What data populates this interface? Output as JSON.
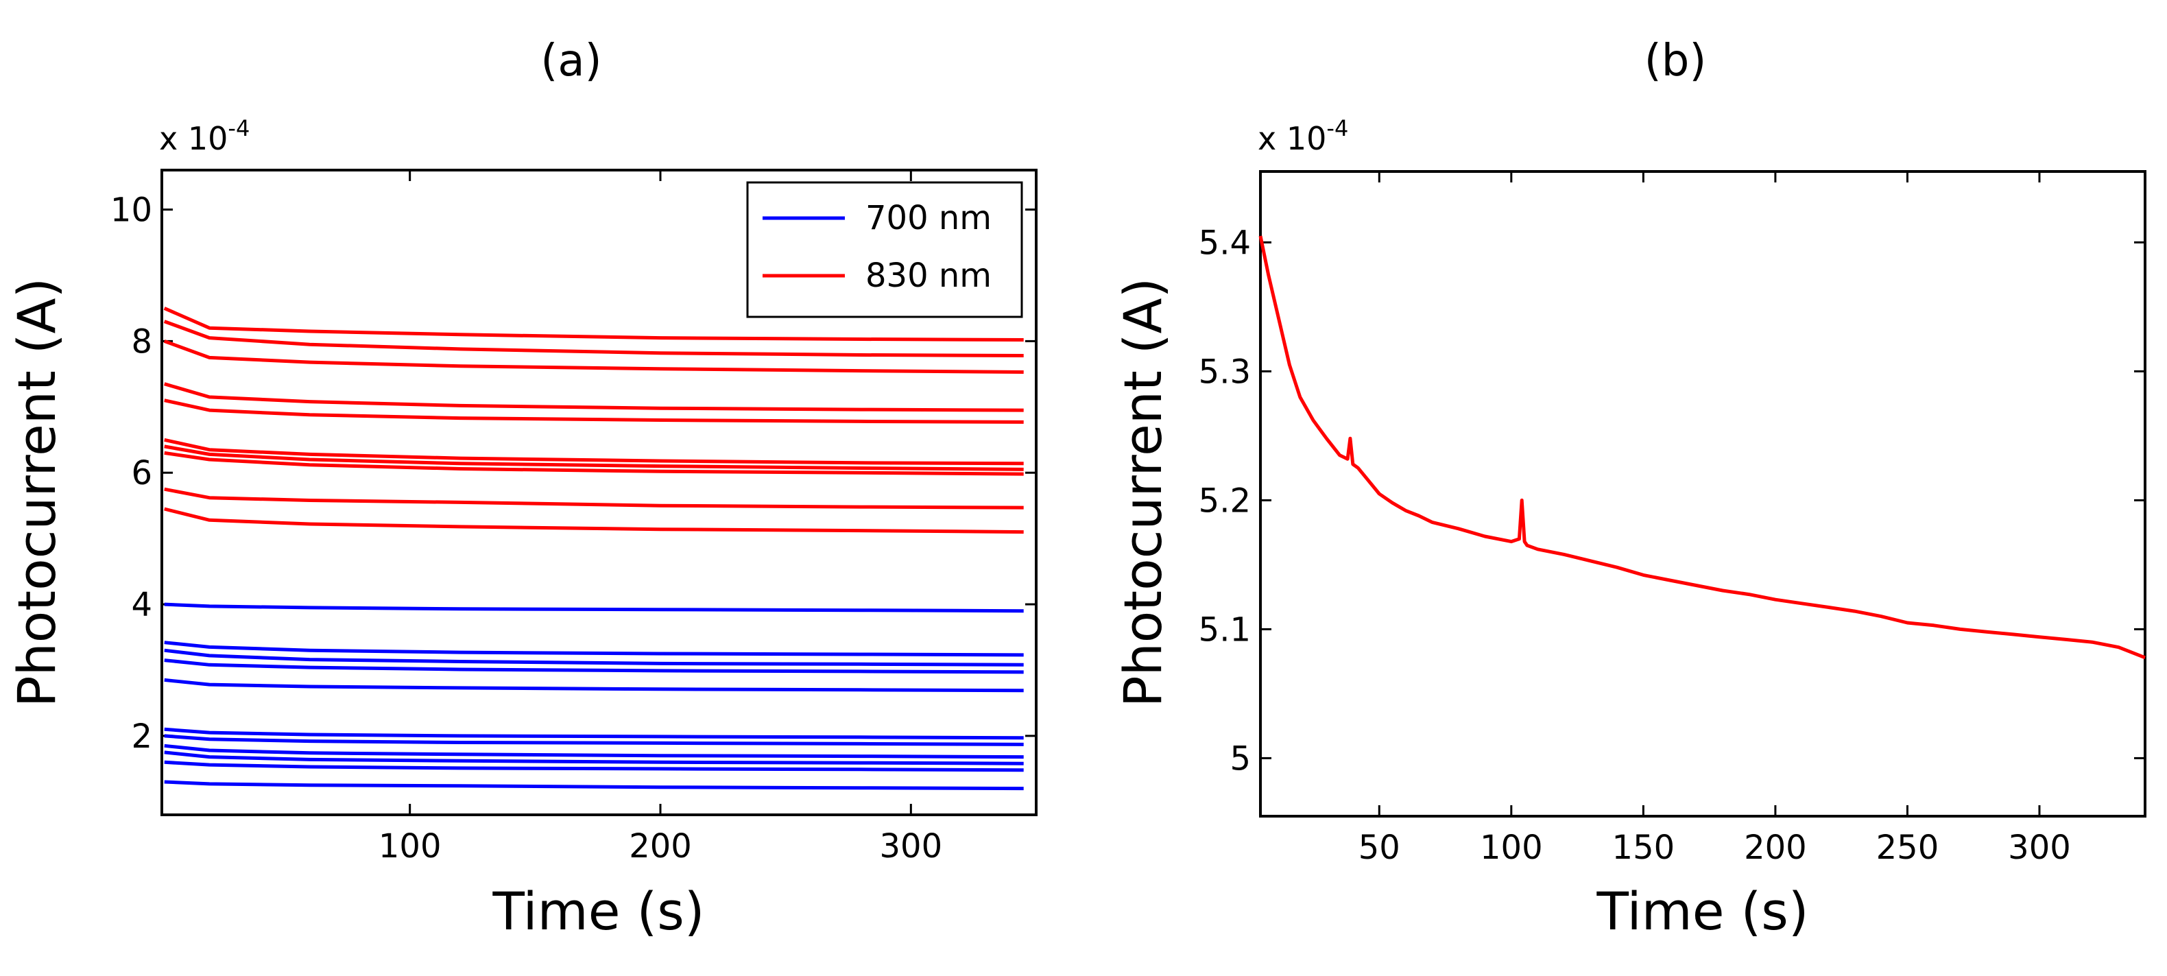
{
  "figure": {
    "description_labels": [
      "(a)",
      "(b)"
    ]
  },
  "chart_data": [
    {
      "type": "line",
      "panel_label": "(a)",
      "title": "(a)",
      "xlabel": "Time (s)",
      "ylabel": "Photocurrent (A)",
      "y_scale_base": "x 10",
      "y_scale_exponent": "-4",
      "xlim": [
        1,
        350
      ],
      "ylim": [
        0.8,
        10.6
      ],
      "xticks": [
        100,
        200,
        300
      ],
      "yticks": [
        2,
        4,
        6,
        8,
        10
      ],
      "legend": {
        "position": "top-right",
        "entries": [
          {
            "label": "700 nm",
            "color": "#0000ff"
          },
          {
            "label": "830 nm",
            "color": "#ff0000"
          }
        ]
      },
      "series": [
        {
          "name": "830 nm",
          "color": "#ff0000",
          "x": [
            2,
            20,
            60,
            120,
            200,
            280,
            345
          ],
          "values": [
            8.5,
            8.2,
            8.15,
            8.1,
            8.05,
            8.03,
            8.02
          ]
        },
        {
          "name": "830 nm",
          "color": "#ff0000",
          "x": [
            2,
            20,
            60,
            120,
            200,
            280,
            345
          ],
          "values": [
            8.3,
            8.05,
            7.95,
            7.88,
            7.82,
            7.79,
            7.78
          ]
        },
        {
          "name": "830 nm",
          "color": "#ff0000",
          "x": [
            2,
            20,
            60,
            120,
            200,
            280,
            345
          ],
          "values": [
            8.0,
            7.75,
            7.68,
            7.62,
            7.58,
            7.55,
            7.53
          ]
        },
        {
          "name": "830 nm",
          "color": "#ff0000",
          "x": [
            2,
            20,
            60,
            120,
            200,
            280,
            345
          ],
          "values": [
            7.35,
            7.15,
            7.08,
            7.02,
            6.98,
            6.96,
            6.95
          ]
        },
        {
          "name": "830 nm",
          "color": "#ff0000",
          "x": [
            2,
            20,
            60,
            120,
            200,
            280,
            345
          ],
          "values": [
            7.1,
            6.95,
            6.88,
            6.83,
            6.8,
            6.78,
            6.77
          ]
        },
        {
          "name": "830 nm",
          "color": "#ff0000",
          "x": [
            2,
            20,
            60,
            120,
            200,
            280,
            345
          ],
          "values": [
            6.5,
            6.35,
            6.28,
            6.22,
            6.18,
            6.15,
            6.14
          ]
        },
        {
          "name": "830 nm",
          "color": "#ff0000",
          "x": [
            2,
            20,
            60,
            120,
            200,
            280,
            345
          ],
          "values": [
            6.4,
            6.28,
            6.2,
            6.14,
            6.1,
            6.07,
            6.05
          ]
        },
        {
          "name": "830 nm",
          "color": "#ff0000",
          "x": [
            2,
            20,
            60,
            120,
            200,
            280,
            345
          ],
          "values": [
            6.3,
            6.2,
            6.12,
            6.06,
            6.02,
            6.0,
            5.98
          ]
        },
        {
          "name": "830 nm",
          "color": "#ff0000",
          "x": [
            2,
            20,
            60,
            120,
            200,
            280,
            345
          ],
          "values": [
            5.75,
            5.62,
            5.58,
            5.55,
            5.5,
            5.48,
            5.47
          ]
        },
        {
          "name": "830 nm",
          "color": "#ff0000",
          "x": [
            2,
            20,
            60,
            120,
            200,
            280,
            345
          ],
          "values": [
            5.45,
            5.28,
            5.22,
            5.18,
            5.14,
            5.12,
            5.1
          ]
        },
        {
          "name": "700 nm",
          "color": "#0000ff",
          "x": [
            2,
            20,
            60,
            120,
            200,
            280,
            345
          ],
          "values": [
            4.0,
            3.97,
            3.95,
            3.93,
            3.92,
            3.91,
            3.9
          ]
        },
        {
          "name": "700 nm",
          "color": "#0000ff",
          "x": [
            2,
            20,
            60,
            120,
            200,
            280,
            345
          ],
          "values": [
            3.42,
            3.35,
            3.3,
            3.27,
            3.25,
            3.24,
            3.23
          ]
        },
        {
          "name": "700 nm",
          "color": "#0000ff",
          "x": [
            2,
            20,
            60,
            120,
            200,
            280,
            345
          ],
          "values": [
            3.3,
            3.22,
            3.16,
            3.13,
            3.1,
            3.09,
            3.08
          ]
        },
        {
          "name": "700 nm",
          "color": "#0000ff",
          "x": [
            2,
            20,
            60,
            120,
            200,
            280,
            345
          ],
          "values": [
            3.15,
            3.08,
            3.04,
            3.01,
            2.99,
            2.98,
            2.97
          ]
        },
        {
          "name": "700 nm",
          "color": "#0000ff",
          "x": [
            2,
            20,
            60,
            120,
            200,
            280,
            345
          ],
          "values": [
            2.85,
            2.78,
            2.75,
            2.73,
            2.71,
            2.7,
            2.69
          ]
        },
        {
          "name": "700 nm",
          "color": "#0000ff",
          "x": [
            2,
            20,
            60,
            120,
            200,
            280,
            345
          ],
          "values": [
            2.1,
            2.05,
            2.02,
            2.0,
            1.99,
            1.98,
            1.97
          ]
        },
        {
          "name": "700 nm",
          "color": "#0000ff",
          "x": [
            2,
            20,
            60,
            120,
            200,
            280,
            345
          ],
          "values": [
            2.0,
            1.95,
            1.92,
            1.9,
            1.89,
            1.88,
            1.87
          ]
        },
        {
          "name": "700 nm",
          "color": "#0000ff",
          "x": [
            2,
            20,
            60,
            120,
            200,
            280,
            345
          ],
          "values": [
            1.85,
            1.78,
            1.74,
            1.72,
            1.7,
            1.69,
            1.68
          ]
        },
        {
          "name": "700 nm",
          "color": "#0000ff",
          "x": [
            2,
            20,
            60,
            120,
            200,
            280,
            345
          ],
          "values": [
            1.75,
            1.68,
            1.64,
            1.62,
            1.6,
            1.59,
            1.58
          ]
        },
        {
          "name": "700 nm",
          "color": "#0000ff",
          "x": [
            2,
            20,
            60,
            120,
            200,
            280,
            345
          ],
          "values": [
            1.6,
            1.56,
            1.53,
            1.51,
            1.5,
            1.49,
            1.48
          ]
        },
        {
          "name": "700 nm",
          "color": "#0000ff",
          "x": [
            2,
            20,
            60,
            120,
            200,
            280,
            345
          ],
          "values": [
            1.3,
            1.27,
            1.25,
            1.24,
            1.22,
            1.21,
            1.2
          ]
        }
      ]
    },
    {
      "type": "line",
      "panel_label": "(b)",
      "title": "(b)",
      "xlabel": "Time (s)",
      "ylabel": "Photocurrent (A)",
      "y_scale_base": "x 10",
      "y_scale_exponent": "-4",
      "xlim": [
        5,
        340
      ],
      "ylim": [
        4.955,
        5.455
      ],
      "xticks": [
        50,
        100,
        150,
        200,
        250,
        300
      ],
      "yticks": [
        5,
        5.1,
        5.2,
        5.3,
        5.4
      ],
      "series": [
        {
          "name": "830 nm",
          "color": "#ff0000",
          "x": [
            5,
            8,
            12,
            16,
            20,
            25,
            30,
            35,
            38,
            39,
            40,
            42,
            46,
            50,
            55,
            60,
            65,
            70,
            80,
            90,
            100,
            103,
            104,
            105,
            106,
            110,
            120,
            130,
            140,
            150,
            160,
            170,
            180,
            190,
            200,
            210,
            220,
            230,
            240,
            250,
            260,
            270,
            280,
            290,
            300,
            310,
            320,
            330,
            340
          ],
          "values": [
            5.405,
            5.375,
            5.34,
            5.305,
            5.28,
            5.262,
            5.248,
            5.235,
            5.232,
            5.248,
            5.228,
            5.225,
            5.215,
            5.205,
            5.198,
            5.192,
            5.188,
            5.183,
            5.178,
            5.172,
            5.168,
            5.17,
            5.2,
            5.168,
            5.165,
            5.162,
            5.158,
            5.153,
            5.148,
            5.142,
            5.138,
            5.134,
            5.13,
            5.127,
            5.123,
            5.12,
            5.117,
            5.114,
            5.11,
            5.105,
            5.103,
            5.1,
            5.098,
            5.096,
            5.094,
            5.092,
            5.09,
            5.086,
            5.078
          ]
        }
      ]
    }
  ]
}
